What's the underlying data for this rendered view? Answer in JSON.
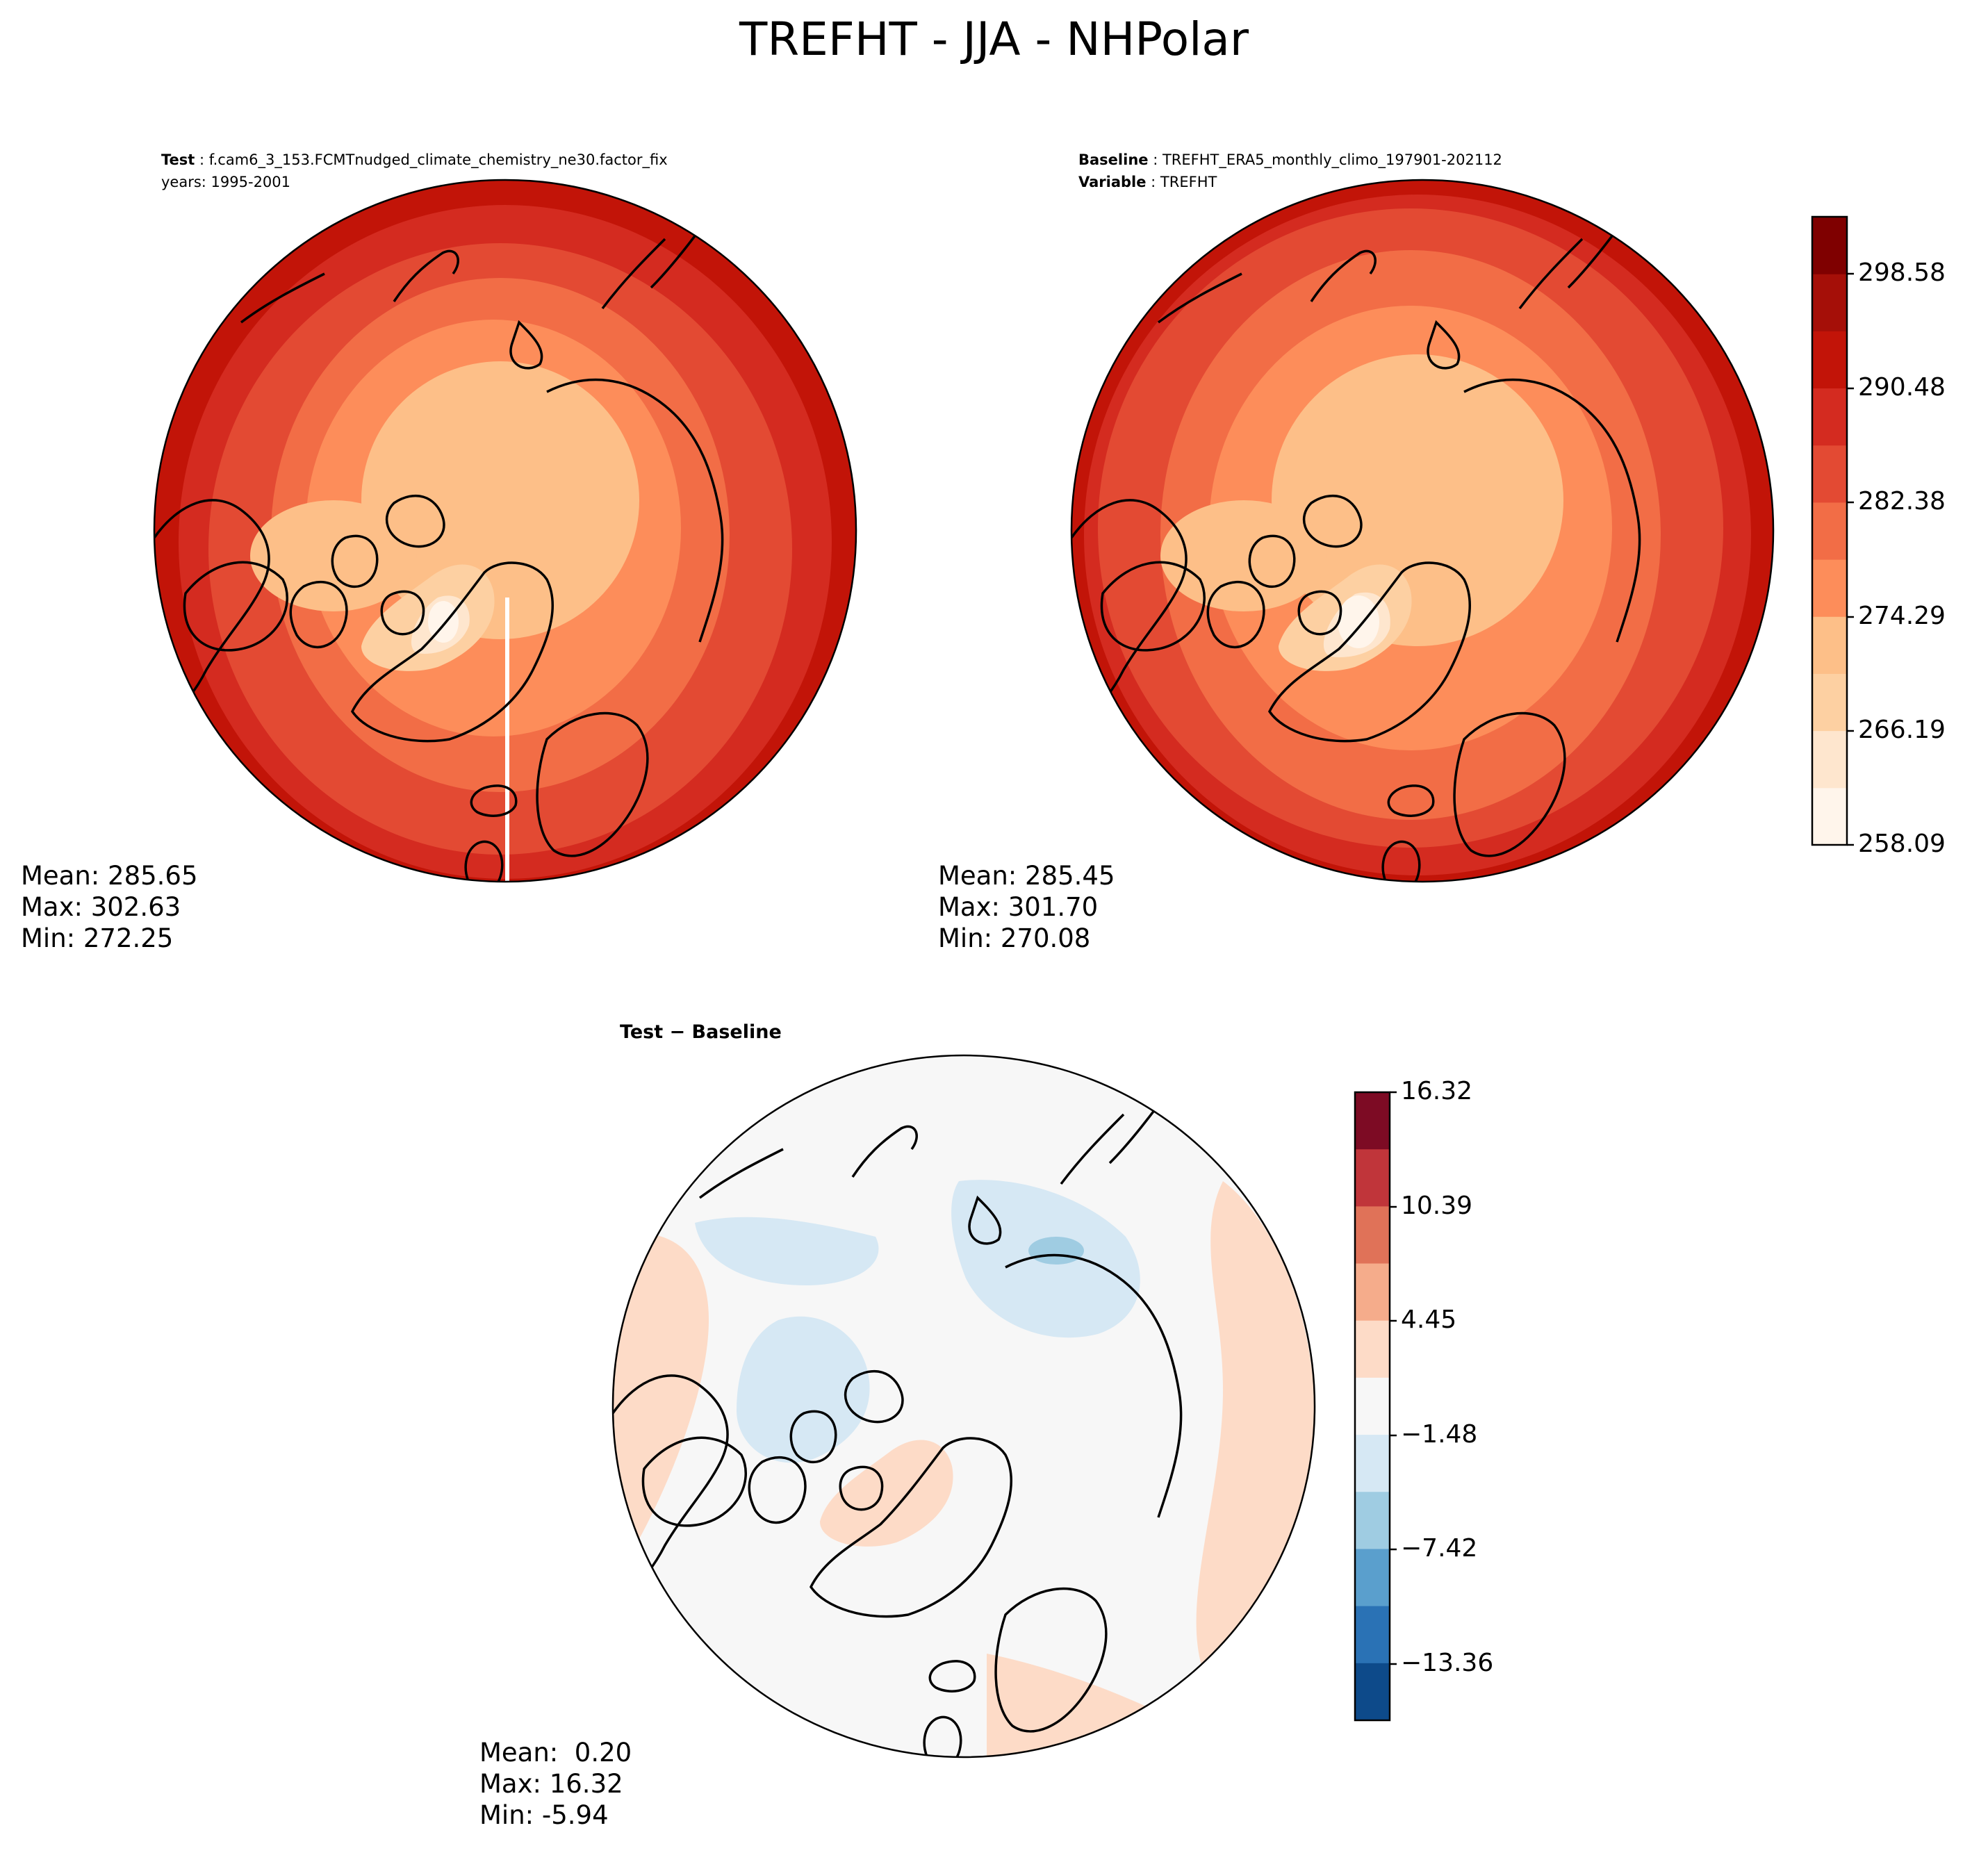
{
  "figure_title": "TREFHT - JJA - NHPolar",
  "test_panel": {
    "label_key": "Test",
    "case": "f.cam6_3_153.FCMTnudged_climate_chemistry_ne30.factor_fix",
    "years": "years: 1995-2001",
    "stats": {
      "mean": "Mean: 285.65",
      "max": "Max: 302.63",
      "min": "Min: 272.25"
    }
  },
  "baseline_panel": {
    "label_key": "Baseline",
    "case": "TREFHT_ERA5_monthly_climo_197901-202112",
    "variable_key": "Variable",
    "variable": "TREFHT",
    "stats": {
      "mean": "Mean: 285.45",
      "max": "Max: 301.70",
      "min": "Min: 270.08"
    }
  },
  "diff_panel": {
    "title": "Test − Baseline",
    "stats": {
      "mean": "Mean:  0.20",
      "max": "Max: 16.32",
      "min": "Min: -5.94"
    }
  },
  "colorbar_main": {
    "ticks": [
      "258.09",
      "266.19",
      "274.29",
      "282.38",
      "290.48",
      "298.58"
    ],
    "colors": [
      "#fff5eb",
      "#fee6ce",
      "#fdd0a2",
      "#fdbf88",
      "#fd8d5a",
      "#f26d46",
      "#e34a33",
      "#d42b20",
      "#c21408",
      "#a50f08",
      "#7f0000"
    ]
  },
  "colorbar_diff": {
    "ticks": [
      "16.32",
      "10.39",
      "4.45",
      "−1.48",
      "−7.42",
      "−13.36"
    ],
    "colors": [
      "#7d0b24",
      "#c0353a",
      "#e07258",
      "#f5ac8b",
      "#fddbc7",
      "#f7f7f7",
      "#d6e8f4",
      "#9fcce2",
      "#5a9fcd",
      "#2a72b5",
      "#0d4a8a"
    ]
  },
  "map_colors": {
    "test": {
      "outer": "#c21408",
      "ring1": "#d42b20",
      "ring2": "#e34a33",
      "ring3": "#f26d46",
      "ring4": "#fd8d5a",
      "polar": "#fdbf88",
      "greenland_a": "#fdd0a2",
      "greenland_b": "#fee6ce",
      "greenland_c": "#fff5eb"
    },
    "baseline": {
      "outer": "#c21408",
      "ring1": "#d42b20",
      "ring2": "#e34a33",
      "ring3": "#f26d46",
      "ring4": "#fd8d5a",
      "polar": "#fdbf88",
      "greenland_a": "#fdd0a2",
      "greenland_b": "#fee6ce",
      "greenland_c": "#fff5eb"
    },
    "diff": {
      "base": "#f7f7f7",
      "warm": "#fddbc7",
      "warm2": "#f5ac8b",
      "cool": "#d6e8f4",
      "cool2": "#9fcce2"
    }
  }
}
